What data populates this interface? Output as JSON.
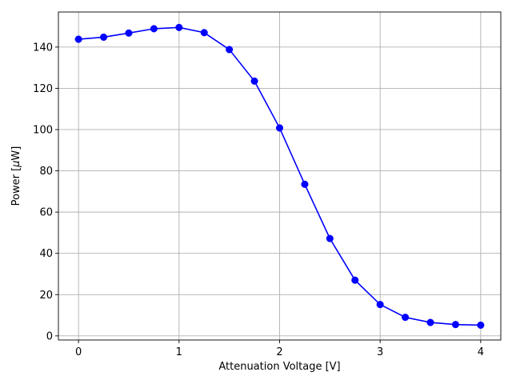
{
  "chart_data": {
    "type": "line",
    "title": "",
    "xlabel": "Attenuation Voltage [V]",
    "ylabel_prefix": "Power [",
    "ylabel_mu": "μ",
    "ylabel_suffix": "W]",
    "xlim": [
      -0.2,
      4.2
    ],
    "ylim": [
      -2,
      157
    ],
    "xticks": [
      0,
      1,
      2,
      3,
      4
    ],
    "yticks": [
      0,
      20,
      40,
      60,
      80,
      100,
      120,
      140
    ],
    "grid": true,
    "legend": "none",
    "series": [
      {
        "color": "#0000ff",
        "marker": "circle",
        "x": [
          0,
          0.25,
          0.5,
          0.75,
          1.0,
          1.25,
          1.5,
          1.75,
          2.0,
          2.25,
          2.5,
          2.75,
          3.0,
          3.25,
          3.5,
          3.75,
          4.0
        ],
        "y": [
          143.8,
          144.8,
          146.8,
          148.9,
          149.5,
          147.0,
          138.8,
          123.5,
          100.8,
          73.5,
          47.2,
          27.0,
          15.2,
          9.0,
          6.5,
          5.5,
          5.2
        ]
      }
    ]
  }
}
